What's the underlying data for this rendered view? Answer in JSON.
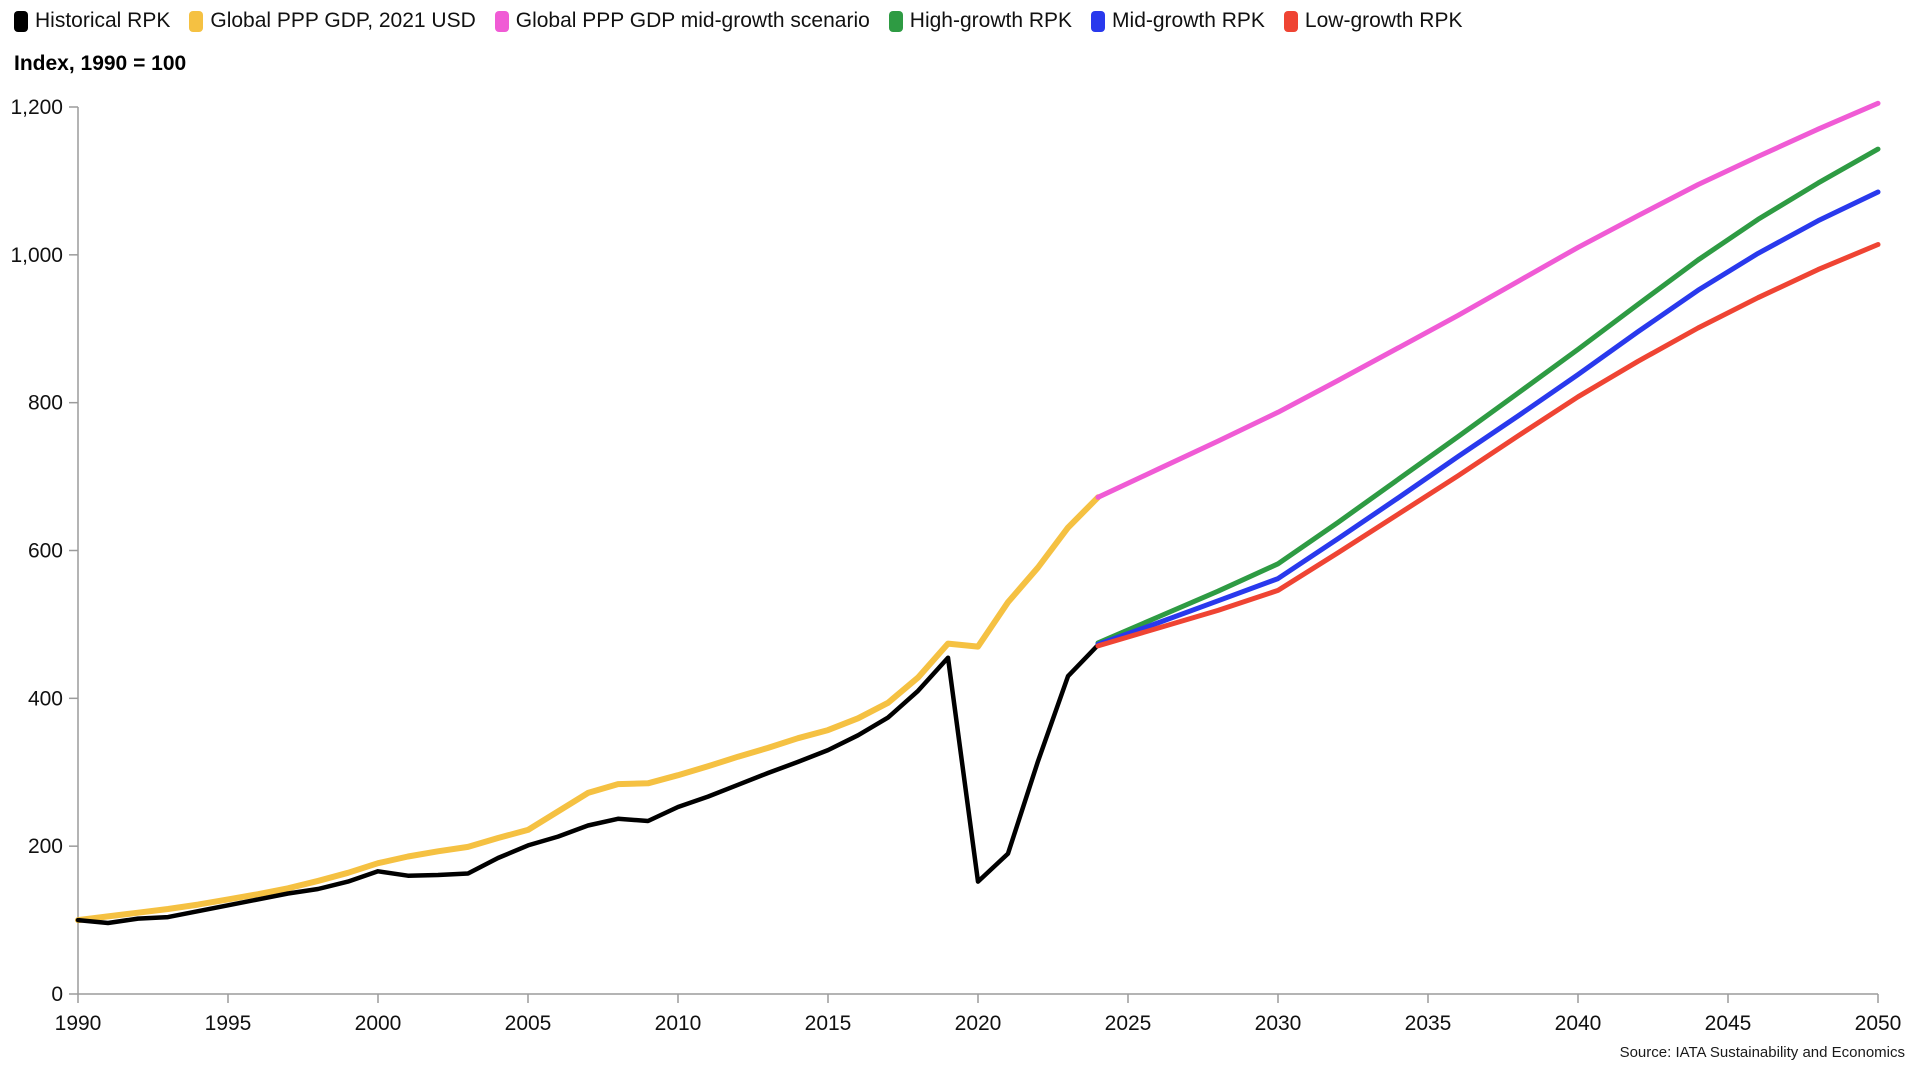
{
  "legend": {
    "items": [
      {
        "label": "Historical RPK"
      },
      {
        "label": "Global PPP GDP, 2021 USD"
      },
      {
        "label": "Global PPP GDP mid-growth scenario"
      },
      {
        "label": "High-growth RPK"
      },
      {
        "label": "Mid-growth RPK"
      },
      {
        "label": "Low-growth RPK"
      }
    ]
  },
  "chart": {
    "y_axis_title": "Index, 1990 = 100",
    "source": "Source: IATA Sustainability and Economics"
  },
  "chart_data": {
    "type": "line",
    "title": "",
    "y_axis_title": "Index, 1990 = 100",
    "xlabel": "",
    "ylabel": "Index, 1990 = 100",
    "xlim": [
      1990,
      2050
    ],
    "ylim": [
      0,
      1200
    ],
    "grid": false,
    "legend_position": "top-left",
    "axis_color": "#9b9b9b",
    "text_color": "#111111",
    "x_ticks": [
      "1990",
      "1995",
      "2000",
      "2005",
      "2010",
      "2015",
      "2020",
      "2025",
      "2030",
      "2035",
      "2040",
      "2045",
      "2050"
    ],
    "x_tick_values": [
      1990,
      1995,
      2000,
      2005,
      2010,
      2015,
      2020,
      2025,
      2030,
      2035,
      2040,
      2045,
      2050
    ],
    "y_ticks": [
      {
        "value": 0,
        "label": "0"
      },
      {
        "value": 200,
        "label": "200"
      },
      {
        "value": 400,
        "label": "400"
      },
      {
        "value": 600,
        "label": "600"
      },
      {
        "value": 800,
        "label": "800"
      },
      {
        "value": 1000,
        "label": "1,000"
      },
      {
        "value": 1200,
        "label": "1,200"
      }
    ],
    "source": "Source: IATA Sustainability and Economics",
    "series": [
      {
        "id": "gdp-historical",
        "name": "Global PPP GDP, 2021 USD",
        "color": "#F5C142",
        "points": [
          [
            1990,
            100
          ],
          [
            1991,
            105
          ],
          [
            1992,
            110
          ],
          [
            1993,
            115
          ],
          [
            1994,
            121
          ],
          [
            1995,
            128
          ],
          [
            1996,
            135
          ],
          [
            1997,
            143
          ],
          [
            1998,
            153
          ],
          [
            1999,
            164
          ],
          [
            2000,
            177
          ],
          [
            2001,
            186
          ],
          [
            2002,
            193
          ],
          [
            2003,
            199
          ],
          [
            2004,
            211
          ],
          [
            2005,
            222
          ],
          [
            2006,
            247
          ],
          [
            2007,
            272
          ],
          [
            2008,
            284
          ],
          [
            2009,
            285
          ],
          [
            2010,
            296
          ],
          [
            2011,
            308
          ],
          [
            2012,
            321
          ],
          [
            2013,
            333
          ],
          [
            2014,
            346
          ],
          [
            2015,
            357
          ],
          [
            2016,
            373
          ],
          [
            2017,
            394
          ],
          [
            2018,
            428
          ],
          [
            2019,
            474
          ],
          [
            2020,
            470
          ],
          [
            2021,
            530
          ],
          [
            2022,
            577
          ],
          [
            2023,
            631
          ],
          [
            2024,
            672
          ]
        ]
      },
      {
        "id": "historical-rpk",
        "name": "Historical RPK",
        "color": "#000000",
        "points": [
          [
            1990,
            100
          ],
          [
            1991,
            96
          ],
          [
            1992,
            102
          ],
          [
            1993,
            104
          ],
          [
            1994,
            112
          ],
          [
            1995,
            120
          ],
          [
            1996,
            128
          ],
          [
            1997,
            136
          ],
          [
            1998,
            142
          ],
          [
            1999,
            152
          ],
          [
            2000,
            166
          ],
          [
            2001,
            160
          ],
          [
            2002,
            161
          ],
          [
            2003,
            163
          ],
          [
            2004,
            184
          ],
          [
            2005,
            201
          ],
          [
            2006,
            213
          ],
          [
            2007,
            228
          ],
          [
            2008,
            237
          ],
          [
            2009,
            234
          ],
          [
            2010,
            253
          ],
          [
            2011,
            267
          ],
          [
            2012,
            283
          ],
          [
            2013,
            299
          ],
          [
            2014,
            314
          ],
          [
            2015,
            330
          ],
          [
            2016,
            350
          ],
          [
            2017,
            374
          ],
          [
            2018,
            410
          ],
          [
            2019,
            455
          ],
          [
            2020,
            152
          ],
          [
            2021,
            190
          ],
          [
            2022,
            315
          ],
          [
            2023,
            430
          ],
          [
            2024,
            472
          ]
        ]
      },
      {
        "id": "gdp-scenario",
        "name": "Global PPP GDP mid-growth scenario",
        "color": "#F05BD5",
        "points": [
          [
            2024,
            672
          ],
          [
            2026,
            710
          ],
          [
            2028,
            748
          ],
          [
            2030,
            787
          ],
          [
            2032,
            830
          ],
          [
            2034,
            874
          ],
          [
            2036,
            918
          ],
          [
            2038,
            964
          ],
          [
            2040,
            1010
          ],
          [
            2042,
            1053
          ],
          [
            2044,
            1095
          ],
          [
            2046,
            1133
          ],
          [
            2048,
            1170
          ],
          [
            2050,
            1205
          ]
        ]
      },
      {
        "id": "high-growth-rpk",
        "name": "High-growth RPK",
        "color": "#2E9B43",
        "points": [
          [
            2024,
            475
          ],
          [
            2026,
            510
          ],
          [
            2028,
            545
          ],
          [
            2030,
            582
          ],
          [
            2032,
            638
          ],
          [
            2034,
            696
          ],
          [
            2036,
            754
          ],
          [
            2038,
            813
          ],
          [
            2040,
            872
          ],
          [
            2042,
            933
          ],
          [
            2044,
            993
          ],
          [
            2046,
            1048
          ],
          [
            2048,
            1097
          ],
          [
            2050,
            1143
          ]
        ]
      },
      {
        "id": "mid-growth-rpk",
        "name": "Mid-growth RPK",
        "color": "#2939ED",
        "points": [
          [
            2024,
            473
          ],
          [
            2026,
            502
          ],
          [
            2028,
            532
          ],
          [
            2030,
            562
          ],
          [
            2032,
            616
          ],
          [
            2034,
            671
          ],
          [
            2036,
            727
          ],
          [
            2038,
            782
          ],
          [
            2040,
            838
          ],
          [
            2042,
            896
          ],
          [
            2044,
            952
          ],
          [
            2046,
            1002
          ],
          [
            2048,
            1046
          ],
          [
            2050,
            1085
          ]
        ]
      },
      {
        "id": "low-growth-rpk",
        "name": "Low-growth RPK",
        "color": "#EF4433",
        "points": [
          [
            2024,
            471
          ],
          [
            2026,
            495
          ],
          [
            2028,
            519
          ],
          [
            2030,
            546
          ],
          [
            2032,
            597
          ],
          [
            2034,
            649
          ],
          [
            2036,
            701
          ],
          [
            2038,
            755
          ],
          [
            2040,
            808
          ],
          [
            2042,
            856
          ],
          [
            2044,
            901
          ],
          [
            2046,
            942
          ],
          [
            2048,
            980
          ],
          [
            2050,
            1014
          ]
        ]
      }
    ]
  }
}
